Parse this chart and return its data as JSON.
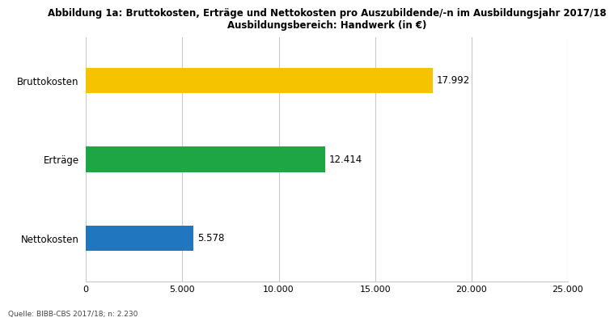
{
  "title_line1": "Abbildung 1a: Bruttokosten, Erträge und Nettokosten pro Auszubildende/-n im Ausbildungsjahr 2017/18",
  "title_line2": "Ausbildungsbereich: Handwerk (in €)",
  "categories": [
    "Nettokosten",
    "Erträge",
    "Bruttokosten"
  ],
  "values": [
    5578,
    12414,
    17992
  ],
  "colors": [
    "#2077C0",
    "#1FA644",
    "#F5C300"
  ],
  "xlim": [
    0,
    25000
  ],
  "xticks": [
    0,
    5000,
    10000,
    15000,
    20000,
    25000
  ],
  "xtick_labels": [
    "0",
    "5.000",
    "10.000",
    "15.000",
    "20.000",
    "25.000"
  ],
  "bar_labels": [
    "5.578",
    "12.414",
    "17.992"
  ],
  "source": "Quelle: BIBB-CBS 2017/18; n: 2.230",
  "background_color": "#ffffff",
  "grid_color": "#c8c8c8",
  "title_fontsize": 8.5,
  "label_fontsize": 8.5,
  "tick_fontsize": 8,
  "source_fontsize": 6.5,
  "bar_height": 0.32
}
